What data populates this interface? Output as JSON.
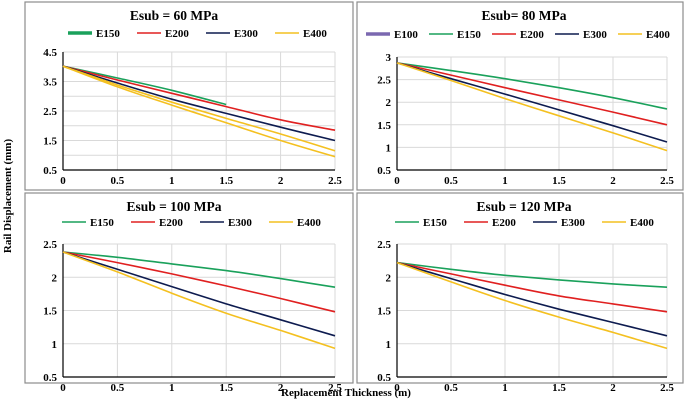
{
  "figure": {
    "ylabel": "Rail Displacement (mm)",
    "xlabel": "Replacement Thickness (m)"
  },
  "colors": {
    "E100": "#7b68b0",
    "E150": "#1aa15b",
    "E200": "#e02020",
    "E300": "#0d1b4f",
    "E400": "#f4c020"
  },
  "chart_data": [
    {
      "type": "line",
      "title": "Esub = 60 MPa",
      "x": [
        0,
        0.5,
        1,
        1.5,
        2,
        2.5
      ],
      "xlim": [
        0,
        2.5
      ],
      "xticks": [
        "0",
        "0.5",
        "1",
        "1.5",
        "2",
        "2.5"
      ],
      "ylim": [
        0.5,
        4.5
      ],
      "yticks": [
        "0.5",
        "1.5",
        "2.5",
        "3.5",
        "4.5"
      ],
      "yticks_minor": [
        "1",
        "2",
        "3",
        "4"
      ],
      "grid": true,
      "legend": "top",
      "series": [
        {
          "name": "E150",
          "values": [
            4.02,
            3.62,
            3.2,
            2.72,
            null,
            null
          ],
          "bold": true
        },
        {
          "name": "E200",
          "values": [
            4.02,
            3.55,
            3.1,
            2.65,
            2.2,
            1.85
          ]
        },
        {
          "name": "E300",
          "values": [
            4.02,
            3.45,
            2.9,
            2.42,
            1.95,
            1.5
          ]
        },
        {
          "name": "E400",
          "values": [
            4.02,
            3.38,
            2.8,
            2.25,
            1.72,
            1.15
          ]
        },
        {
          "name": "",
          "values": [
            4.02,
            3.32,
            2.7,
            2.1,
            1.5,
            0.95
          ]
        }
      ]
    },
    {
      "type": "line",
      "title": "Esub= 80 MPa",
      "x": [
        0,
        0.5,
        1,
        1.5,
        2,
        2.5
      ],
      "xlim": [
        0,
        2.5
      ],
      "xticks": [
        "0",
        "0.5",
        "1",
        "1.5",
        "2",
        "2.5"
      ],
      "ylim": [
        0.5,
        3
      ],
      "yticks": [
        "0.5",
        "1",
        "1.5",
        "2",
        "2.5",
        "3"
      ],
      "grid": true,
      "legend": "top",
      "series": [
        {
          "name": "E100",
          "values": [
            null,
            null,
            null,
            null,
            null,
            null
          ]
        },
        {
          "name": "E150",
          "values": [
            2.87,
            2.7,
            2.52,
            2.32,
            2.1,
            1.85
          ]
        },
        {
          "name": "E200",
          "values": [
            2.87,
            2.6,
            2.32,
            2.05,
            1.78,
            1.5
          ]
        },
        {
          "name": "E300",
          "values": [
            2.87,
            2.52,
            2.18,
            1.83,
            1.48,
            1.12
          ]
        },
        {
          "name": "E400",
          "values": [
            2.87,
            2.48,
            2.08,
            1.7,
            1.32,
            0.93
          ]
        }
      ]
    },
    {
      "type": "line",
      "title": "Esub = 100 MPa",
      "x": [
        0,
        0.5,
        1,
        1.5,
        2,
        2.5
      ],
      "xlim": [
        0,
        2.5
      ],
      "xticks": [
        "0",
        "0.5",
        "1",
        "1.5",
        "2",
        "2.5"
      ],
      "ylim": [
        0.5,
        2.5
      ],
      "yticks": [
        "0.5",
        "1",
        "1.5",
        "2",
        "2.5"
      ],
      "grid": true,
      "legend": "top",
      "series": [
        {
          "name": "E150",
          "values": [
            2.38,
            2.3,
            2.2,
            2.1,
            1.98,
            1.85
          ]
        },
        {
          "name": "E200",
          "values": [
            2.38,
            2.22,
            2.05,
            1.87,
            1.68,
            1.48
          ]
        },
        {
          "name": "E300",
          "values": [
            2.38,
            2.12,
            1.86,
            1.6,
            1.36,
            1.12
          ]
        },
        {
          "name": "E400",
          "values": [
            2.38,
            2.08,
            1.76,
            1.46,
            1.2,
            0.93
          ]
        }
      ]
    },
    {
      "type": "line",
      "title": "Esub = 120 MPa",
      "x": [
        0,
        0.5,
        1,
        1.5,
        2,
        2.5
      ],
      "xlim": [
        0,
        2.5
      ],
      "xticks": [
        "0",
        "0.5",
        "1",
        "1.5",
        "2",
        "2.5"
      ],
      "ylim": [
        0.5,
        2.5
      ],
      "yticks": [
        "0.5",
        "1",
        "1.5",
        "2",
        "2.5"
      ],
      "grid": true,
      "legend": "top",
      "series": [
        {
          "name": "E150",
          "values": [
            2.22,
            2.12,
            2.03,
            1.96,
            1.9,
            1.85
          ]
        },
        {
          "name": "E200",
          "values": [
            2.22,
            2.05,
            1.88,
            1.72,
            1.6,
            1.48
          ]
        },
        {
          "name": "E300",
          "values": [
            2.22,
            1.98,
            1.74,
            1.52,
            1.32,
            1.12
          ]
        },
        {
          "name": "E400",
          "values": [
            2.22,
            1.93,
            1.65,
            1.4,
            1.17,
            0.93
          ]
        }
      ]
    }
  ]
}
